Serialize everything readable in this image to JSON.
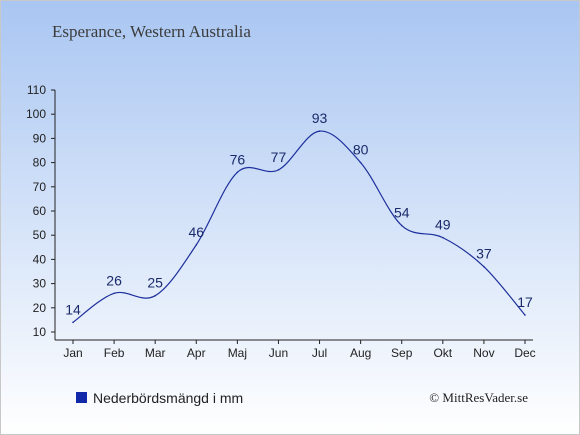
{
  "chart_data": {
    "type": "line",
    "title": "Esperance, Western Australia",
    "categories": [
      "Jan",
      "Feb",
      "Mar",
      "Apr",
      "Maj",
      "Jun",
      "Jul",
      "Aug",
      "Sep",
      "Okt",
      "Nov",
      "Dec"
    ],
    "series": [
      {
        "name": "Nederbördsmängd i mm",
        "values": [
          14,
          26,
          25,
          46,
          76,
          77,
          93,
          80,
          54,
          49,
          37,
          17
        ],
        "color": "#1c2f9c"
      }
    ],
    "y_ticks": [
      10,
      20,
      30,
      40,
      50,
      60,
      70,
      80,
      90,
      100,
      110
    ],
    "ylim": [
      10,
      110
    ],
    "grid": false,
    "legend_position": "bottom-left"
  },
  "legend": {
    "label": "Nederbördsmängd i mm",
    "marker_color": "#1129a8"
  },
  "credit": "© MittResVader.se",
  "background": {
    "top": "#a9c6f2",
    "bottom": "#ffffff"
  }
}
